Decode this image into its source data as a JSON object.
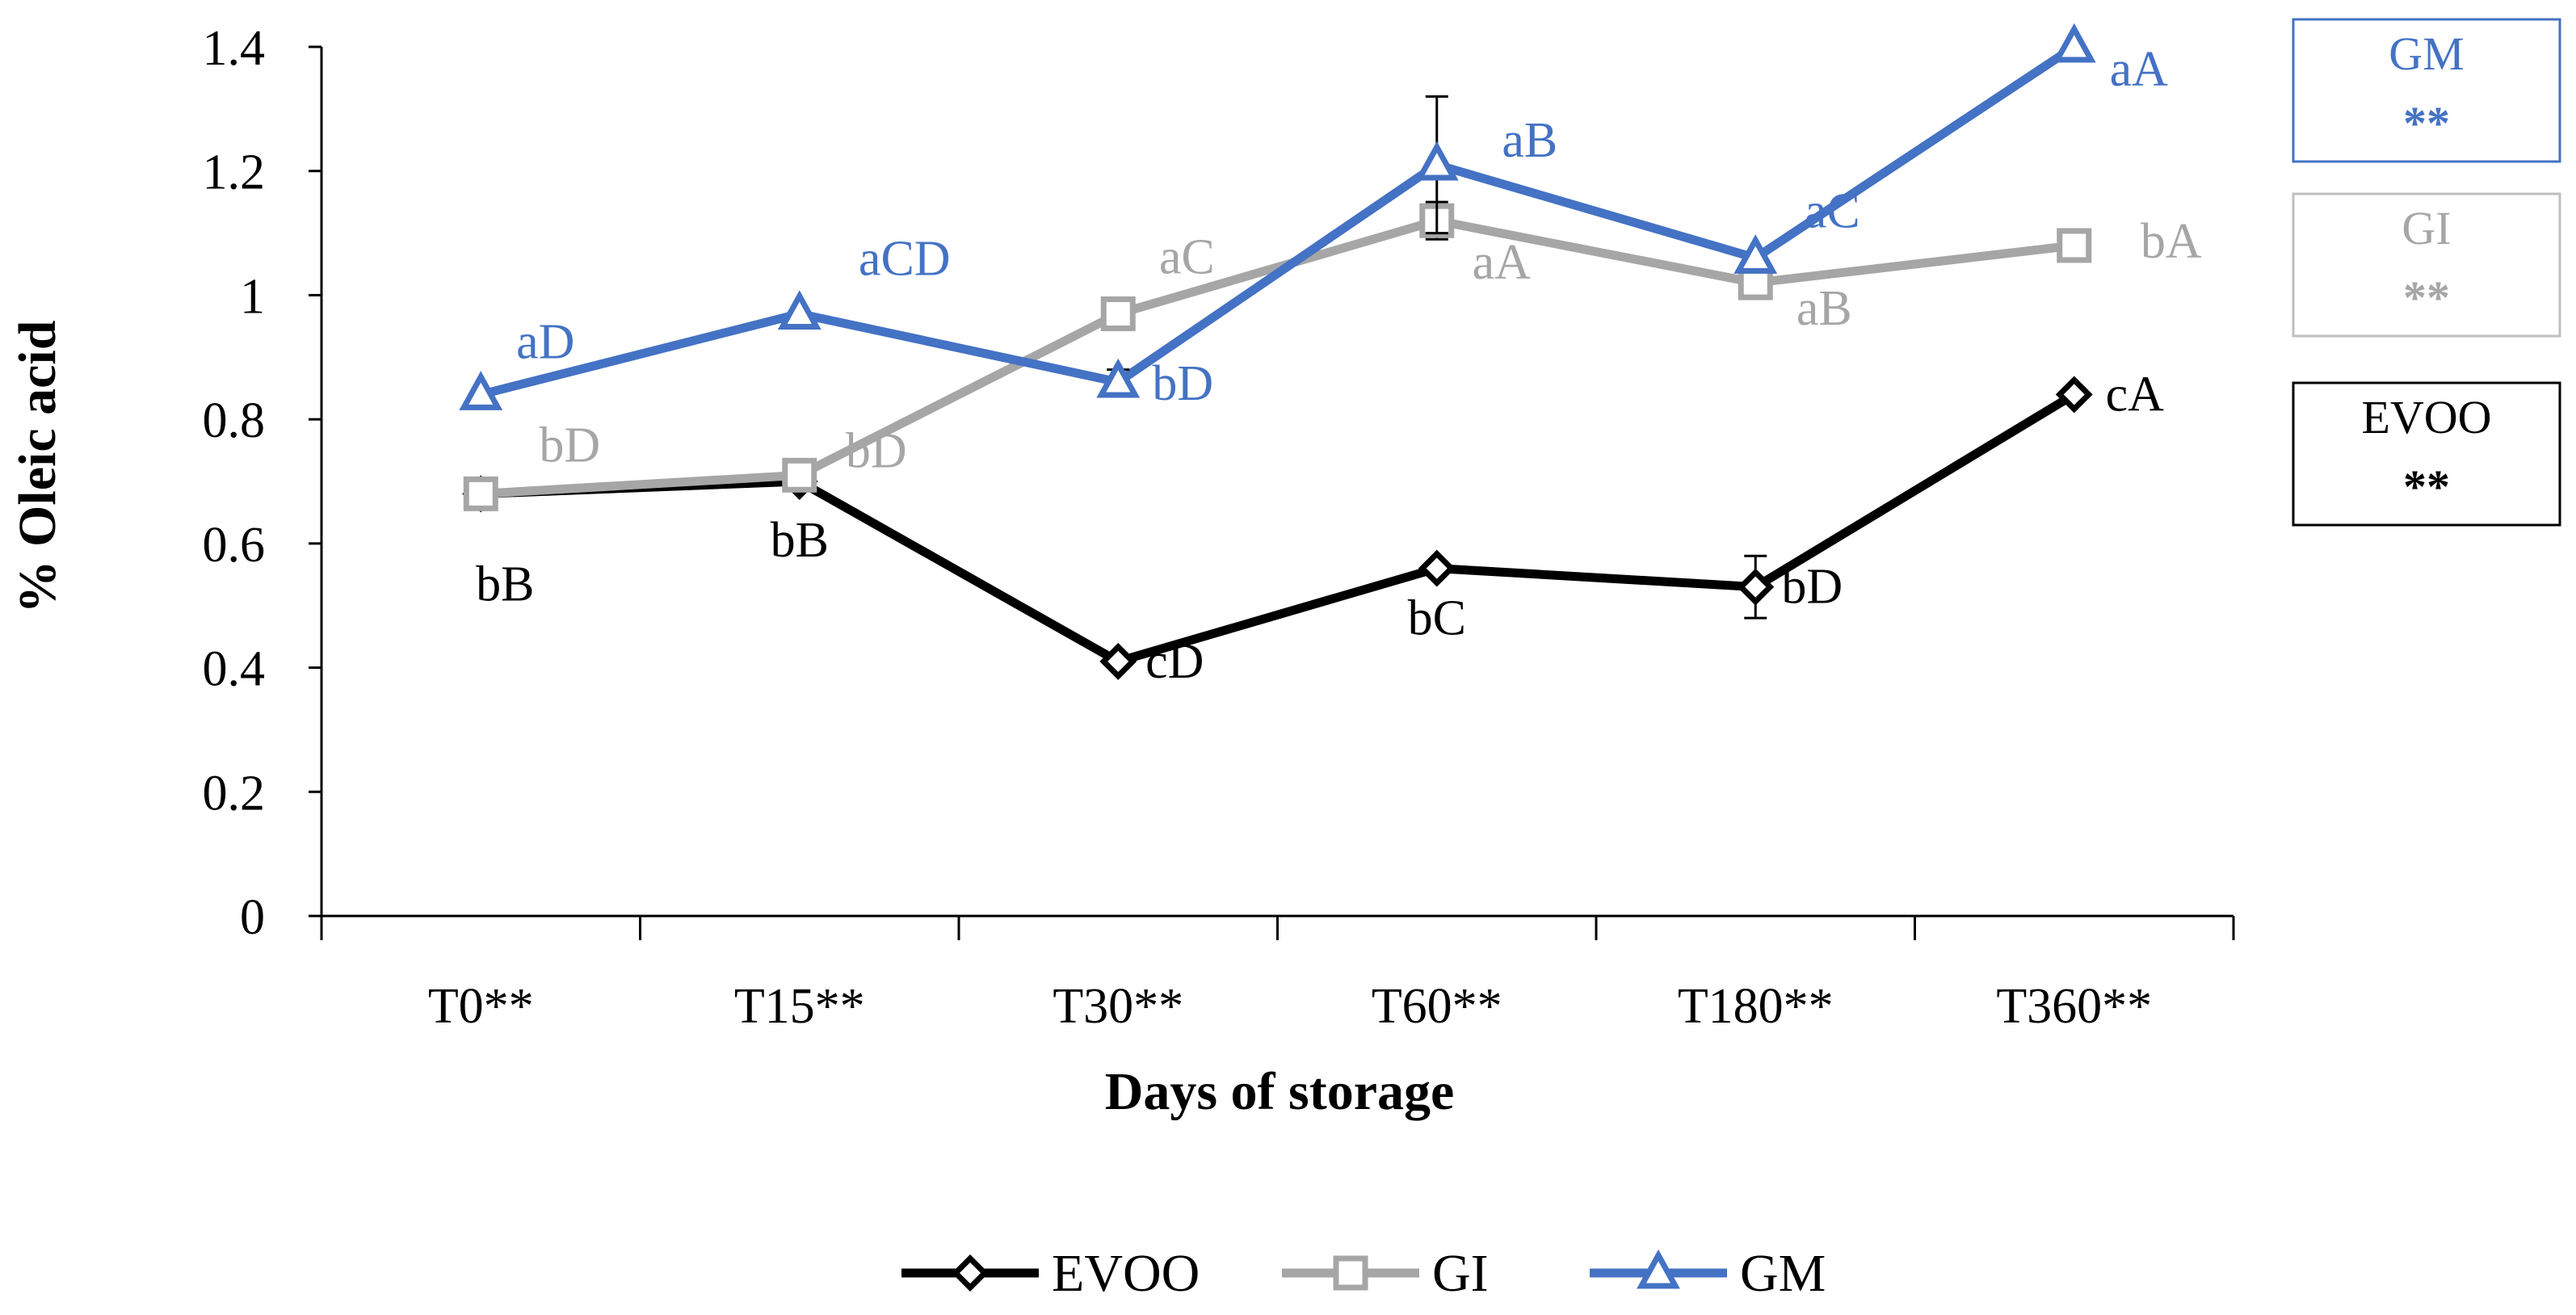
{
  "chart_data": {
    "type": "line",
    "title": "",
    "xlabel": "Days of storage",
    "ylabel": "% Oleic acid",
    "categories": [
      "T0**",
      "T15**",
      "T30**",
      "T60**",
      "T180**",
      "T360**"
    ],
    "ylim": [
      0,
      1.4
    ],
    "yticks": [
      0,
      0.2,
      0.4,
      0.6,
      0.8,
      1,
      1.2,
      1.4
    ],
    "ytick_labels": [
      "0",
      "0.2",
      "0.4",
      "0.6",
      "0.8",
      "1",
      "1.2",
      "1.4"
    ],
    "grid": false,
    "legend_position": "bottom",
    "series": [
      {
        "name": "EVOO",
        "color": "#000000",
        "marker": "diamond",
        "values": [
          0.68,
          0.7,
          0.41,
          0.56,
          0.53,
          0.84
        ],
        "errors": [
          0.0,
          0.0,
          0.0,
          0.0,
          0.05,
          0.0
        ],
        "point_labels": [
          "bB",
          "bB",
          "cD",
          "bC",
          "bD",
          "cA"
        ]
      },
      {
        "name": "GI",
        "color": "#a6a6a6",
        "marker": "square",
        "values": [
          0.68,
          0.71,
          0.97,
          1.12,
          1.02,
          1.08
        ],
        "errors": [
          0.0,
          0.0,
          0.02,
          0.03,
          0.01,
          0.02
        ],
        "point_labels": [
          "bD",
          "bD",
          "aC",
          "aA",
          "aB",
          "bA"
        ]
      },
      {
        "name": "GM",
        "color": "#4472c4",
        "marker": "triangle",
        "values": [
          0.84,
          0.97,
          0.86,
          1.21,
          1.06,
          1.4
        ],
        "errors": [
          0.0,
          0.0,
          0.02,
          0.11,
          0.0,
          0.0
        ],
        "point_labels": [
          "aD",
          "aCD",
          "bD",
          "aB",
          "aC",
          "aA"
        ]
      }
    ],
    "annotation_boxes": [
      {
        "name": "GM",
        "text": "GM",
        "stars": "**",
        "color": "#4472c4",
        "border": "#4472c4"
      },
      {
        "name": "GI",
        "text": "GI",
        "stars": "**",
        "color": "#a6a6a6",
        "border": "#bfbfbf"
      },
      {
        "name": "EVOO",
        "text": "EVOO",
        "stars": "**",
        "color": "#000000",
        "border": "#000000"
      }
    ]
  }
}
